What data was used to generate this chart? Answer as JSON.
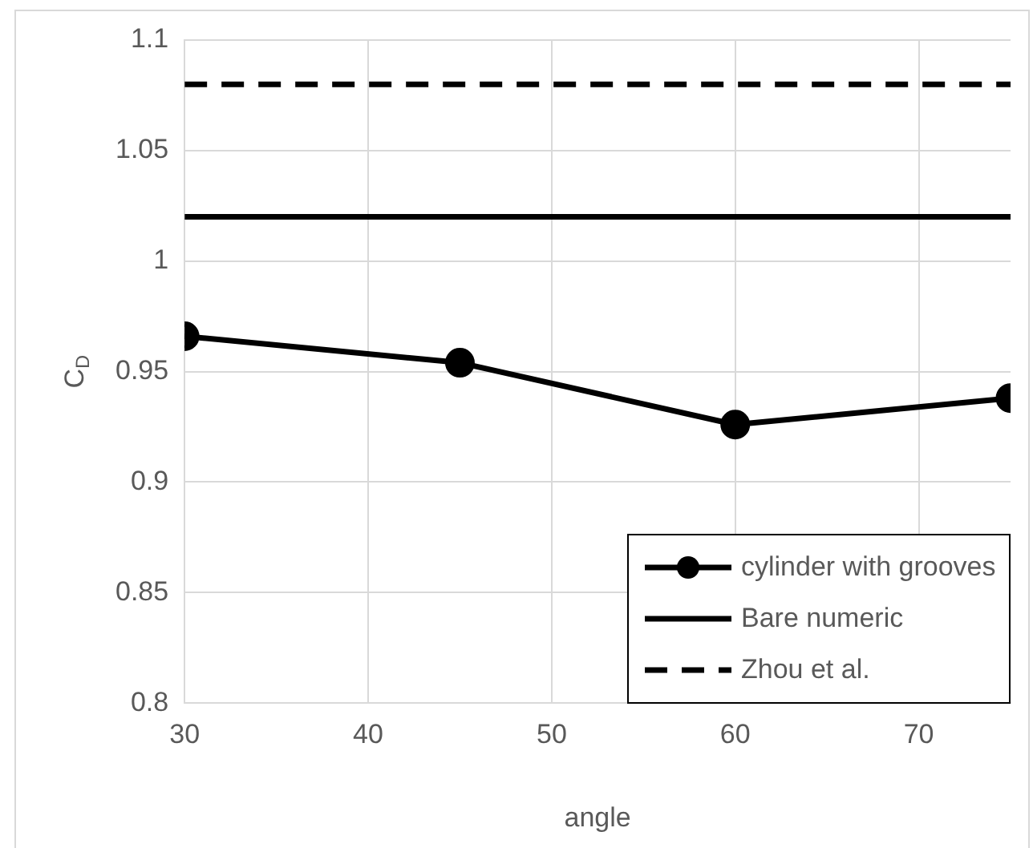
{
  "chart_data": {
    "type": "line",
    "xlabel": "angle",
    "ylabel": "C$_{D}$",
    "xlim": [
      30,
      75
    ],
    "xticks": [
      30,
      40,
      50,
      60,
      70
    ],
    "ylim": [
      0.8,
      1.1
    ],
    "yticks": [
      0.8,
      0.85,
      0.9,
      0.95,
      1,
      1.05,
      1.1
    ],
    "grid": true,
    "legend": "bottom right",
    "series": [
      {
        "name": "cylinder with grooves",
        "color": "#000000",
        "marker": "circle",
        "line_style": "solid",
        "x": [
          30,
          45,
          60,
          75
        ],
        "values": [
          0.966,
          0.954,
          0.926,
          0.938
        ]
      },
      {
        "name": "Bare numeric",
        "color": "#000000",
        "marker": "none",
        "line_style": "solid",
        "x": [
          30,
          75
        ],
        "values": [
          1.02,
          1.02
        ]
      },
      {
        "name": "Zhou et al.",
        "color": "#000000",
        "marker": "none",
        "line_style": "dashed",
        "x": [
          30,
          75
        ],
        "values": [
          1.08,
          1.08
        ]
      }
    ]
  }
}
